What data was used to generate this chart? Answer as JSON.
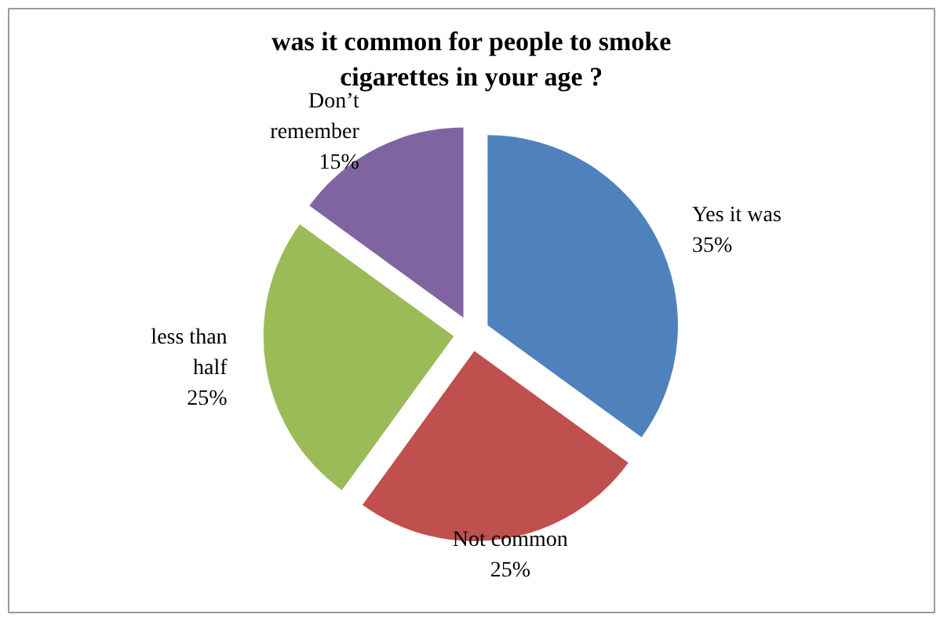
{
  "chart_data": {
    "type": "pie",
    "title": "was it common for people to smoke cigarettes in your age ?",
    "categories": [
      "Yes it was",
      "Not common",
      "less than half",
      "Don’t remember"
    ],
    "values": [
      35,
      25,
      25,
      15
    ],
    "value_labels": [
      "35%",
      "25%",
      "25%",
      "15%"
    ],
    "colors": [
      "#4f81bd",
      "#c0504d",
      "#9bbb59",
      "#8064a2"
    ]
  }
}
